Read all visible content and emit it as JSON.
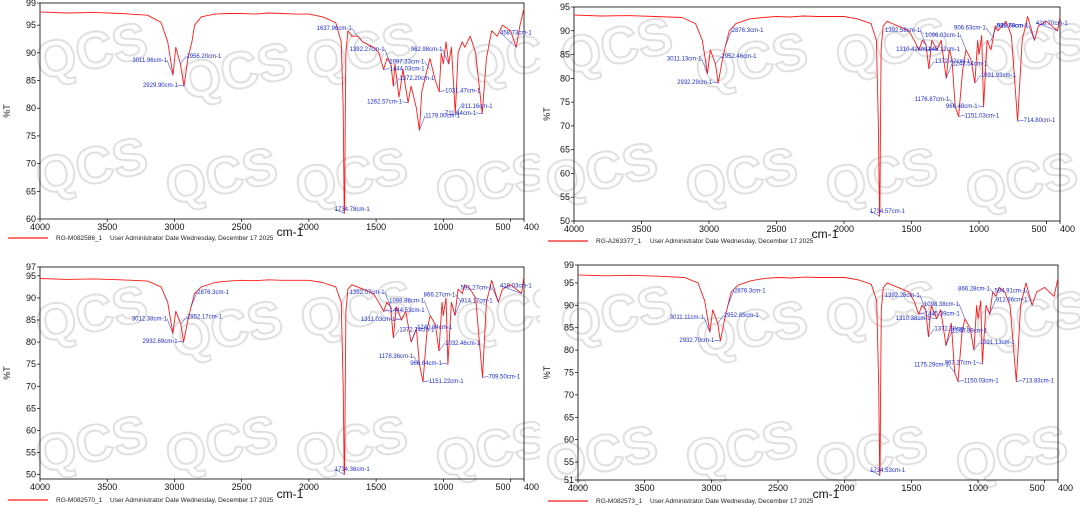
{
  "watermark": "QCS",
  "line_color": "#ff1a1a",
  "annotation_color": "#1a2bd6",
  "chart_data": [
    {
      "type": "line",
      "xlabel": "cm-1",
      "ylabel": "%T",
      "xlim": [
        4000,
        400
      ],
      "ylim": [
        60,
        99
      ],
      "xticks": [
        "4000",
        "3500",
        "3000",
        "2500",
        "2000",
        "1500",
        "1000",
        "500",
        "400"
      ],
      "yticks": [
        "60",
        "65",
        "70",
        "75",
        "80",
        "85",
        "90",
        "95",
        "99"
      ],
      "legend_label": "RG-M082586_1",
      "footer_text": "User Administrator Date Wednesday, December 17 2025",
      "series": [
        {
          "x": [
            4000,
            3800,
            3600,
            3400,
            3200,
            3100,
            3050,
            3011,
            2990,
            2956,
            2929,
            2900,
            2870,
            2850,
            2800,
            2700,
            2600,
            2500,
            2400,
            2300,
            2200,
            2100,
            2000,
            1900,
            1850,
            1800,
            1760,
            1745,
            1737,
            1734,
            1731,
            1725,
            1710,
            1680,
            1637,
            1600,
            1520,
            1480,
            1444,
            1420,
            1390,
            1372,
            1360,
            1330,
            1300,
            1282,
            1262,
            1240,
            1200,
            1178,
            1160,
            1100,
            1060,
            1031,
            1015,
            1000,
            980,
            960,
            940,
            911,
            890,
            860,
            840,
            800,
            760,
            711,
            680,
            640,
            600,
            560,
            500,
            458,
            430,
            400
          ],
          "y": [
            97.4,
            97.2,
            97.3,
            97.1,
            96.8,
            95.5,
            92,
            86,
            91,
            88,
            84,
            89,
            92,
            95,
            96.5,
            97,
            97.1,
            97.1,
            97,
            97.2,
            97.1,
            97,
            97,
            96.5,
            96,
            95.4,
            92,
            80,
            61,
            62,
            75,
            90,
            94,
            93,
            93,
            92,
            91,
            90,
            87,
            89,
            88,
            84,
            88,
            82,
            87,
            84,
            81,
            84,
            80,
            76,
            83,
            89,
            85,
            83,
            90,
            88,
            92,
            88,
            91,
            79,
            90,
            92,
            91,
            93,
            90,
            79,
            89,
            94,
            93,
            95,
            94,
            91,
            95,
            98
          ]
        }
      ],
      "annotations": [
        {
          "label": "3011.96cm-1",
          "x": 3011,
          "y": 86
        },
        {
          "label": "2956.20cm-1",
          "x": 2956,
          "y": 88
        },
        {
          "label": "2929.90cm-1",
          "x": 2929,
          "y": 84
        },
        {
          "label": "1637.96cm-1",
          "x": 1637,
          "y": 93
        },
        {
          "label": "1392.27cm-1",
          "x": 1392,
          "y": 88
        },
        {
          "label": "1444.03cm-1",
          "x": 1444,
          "y": 87
        },
        {
          "label": "1372.20cm-1",
          "x": 1372,
          "y": 84
        },
        {
          "label": "1262.57cm-1",
          "x": 1262,
          "y": 81
        },
        {
          "label": "1179.00cm-1",
          "x": 1179,
          "y": 76
        },
        {
          "label": "1097.33cm-1",
          "x": 1097,
          "y": 87
        },
        {
          "label": "1031.47cm-1",
          "x": 1031,
          "y": 83
        },
        {
          "label": "962.98cm-1",
          "x": 962,
          "y": 88
        },
        {
          "label": "911.16cm-1",
          "x": 911,
          "y": 79
        },
        {
          "label": "711.84cm-1",
          "x": 711,
          "y": 79
        },
        {
          "label": "458.73cm-1",
          "x": 458,
          "y": 91
        },
        {
          "label": "1734.78cm-1",
          "x": 1734,
          "y": 61
        }
      ]
    },
    {
      "type": "line",
      "xlabel": "cm-1",
      "ylabel": "%T",
      "xlim": [
        4000,
        400
      ],
      "ylim": [
        50,
        95
      ],
      "xticks": [
        "4000",
        "3500",
        "3000",
        "2500",
        "2000",
        "1500",
        "1000",
        "500",
        "400"
      ],
      "yticks": [
        "50",
        "55",
        "60",
        "65",
        "70",
        "75",
        "80",
        "85",
        "90",
        "95"
      ],
      "legend_label": "RG-A263377_1",
      "footer_text": "User Administrator Date Wednesday, December 17 2025",
      "series": [
        {
          "x": [
            4000,
            3800,
            3600,
            3400,
            3200,
            3100,
            3050,
            3011,
            2990,
            2952,
            2932,
            2900,
            2876,
            2850,
            2800,
            2700,
            2600,
            2500,
            2400,
            2300,
            2200,
            2100,
            2000,
            1900,
            1850,
            1800,
            1760,
            1745,
            1737,
            1734,
            1731,
            1725,
            1710,
            1680,
            1600,
            1520,
            1480,
            1445,
            1420,
            1392,
            1372,
            1350,
            1310,
            1280,
            1243,
            1220,
            1200,
            1176,
            1151,
            1120,
            1096,
            1060,
            1031,
            1010,
            1000,
            980,
            966,
            940,
            911,
            880,
            860,
            800,
            760,
            714,
            680,
            640,
            589,
            560,
            500,
            418,
            400
          ],
          "y": [
            93.3,
            93.1,
            93.2,
            93,
            92.8,
            91.5,
            88,
            81,
            86,
            83,
            79,
            84,
            87,
            90,
            91.5,
            92.5,
            92.8,
            93,
            92.9,
            93.1,
            93,
            93,
            93,
            92.5,
            92,
            91.5,
            88,
            70,
            51,
            52,
            65,
            86,
            91,
            92,
            91,
            90,
            88,
            86,
            88,
            87,
            82,
            88,
            86,
            88,
            80,
            86,
            84,
            74,
            72,
            82,
            86,
            84,
            79,
            88,
            85,
            89,
            74,
            88,
            86,
            91,
            90,
            92,
            89,
            71,
            88,
            93,
            88,
            91,
            92,
            90,
            93
          ]
        }
      ],
      "annotations": [
        {
          "label": "3011.13cm-1",
          "x": 3011,
          "y": 81
        },
        {
          "label": "2952.46cm-1",
          "x": 2952,
          "y": 83
        },
        {
          "label": "2932.29cm-1",
          "x": 2932,
          "y": 79
        },
        {
          "label": "2876.3cm-1",
          "x": 2876,
          "y": 87
        },
        {
          "label": "1392.58cm-1",
          "x": 1392,
          "y": 87
        },
        {
          "label": "1445.12cm-1",
          "x": 1445,
          "y": 86
        },
        {
          "label": "1310.42cm-1",
          "x": 1310,
          "y": 86
        },
        {
          "label": "1372.42cm-1",
          "x": 1372,
          "y": 82
        },
        {
          "label": "1243.54cm-1",
          "x": 1243,
          "y": 80
        },
        {
          "label": "1096.03cm-1",
          "x": 1096,
          "y": 86
        },
        {
          "label": "1031.93cm-1",
          "x": 1031,
          "y": 79
        },
        {
          "label": "1176.87cm-1",
          "x": 1176,
          "y": 74
        },
        {
          "label": "966.48cm-1",
          "x": 966,
          "y": 74
        },
        {
          "label": "1151.03cm-1",
          "x": 1151,
          "y": 72
        },
        {
          "label": "906.63cm-1",
          "x": 906,
          "y": 89
        },
        {
          "label": "911.79cm-1",
          "x": 911,
          "y": 88
        },
        {
          "label": "714.80cm-1",
          "x": 714,
          "y": 71
        },
        {
          "label": "418.70cm-1",
          "x": 418,
          "y": 90
        },
        {
          "label": "589.68cm-1",
          "x": 589,
          "y": 88
        },
        {
          "label": "1734.57cm-1",
          "x": 1734,
          "y": 51
        }
      ]
    },
    {
      "type": "line",
      "xlabel": "cm-1",
      "ylabel": "%T",
      "xlim": [
        4000,
        400
      ],
      "ylim": [
        49,
        97
      ],
      "xticks": [
        "4000",
        "3500",
        "3000",
        "2500",
        "2000",
        "1500",
        "1000",
        "500",
        "400"
      ],
      "yticks": [
        "50",
        "55",
        "60",
        "65",
        "70",
        "75",
        "80",
        "85",
        "90",
        "95",
        "97"
      ],
      "legend_label": "RG-M082570_1",
      "footer_text": "User Administrator Date Wednesday, December 17 2025",
      "series": [
        {
          "x": [
            4000,
            3800,
            3600,
            3400,
            3200,
            3100,
            3050,
            3012,
            2990,
            2952,
            2932,
            2900,
            2876,
            2850,
            2800,
            2700,
            2600,
            2500,
            2400,
            2300,
            2200,
            2100,
            2000,
            1900,
            1850,
            1800,
            1760,
            1745,
            1737,
            1734,
            1731,
            1725,
            1710,
            1680,
            1600,
            1520,
            1480,
            1444,
            1420,
            1392,
            1372,
            1350,
            1311,
            1280,
            1240,
            1200,
            1178,
            1151,
            1120,
            1098,
            1060,
            1032,
            1010,
            1000,
            980,
            966,
            940,
            914,
            890,
            860,
            840,
            800,
            760,
            709,
            680,
            640,
            591,
            560,
            500,
            418,
            400
          ],
          "y": [
            94.4,
            94.2,
            94.3,
            94.1,
            93.8,
            92.5,
            89,
            82,
            87,
            84,
            80,
            85,
            88,
            91,
            92.5,
            93.5,
            93.8,
            94,
            93.9,
            94.1,
            94,
            94,
            94,
            93.5,
            93,
            92.5,
            89,
            70,
            50,
            51,
            66,
            87,
            92,
            93,
            92,
            91,
            89,
            87,
            89,
            88,
            81,
            88,
            85,
            87,
            80,
            83,
            75,
            71,
            83,
            86,
            84,
            78,
            89,
            86,
            90,
            75,
            89,
            86,
            92,
            91,
            93,
            92,
            90,
            72,
            89,
            94,
            89,
            92,
            93,
            91,
            95
          ]
        }
      ],
      "annotations": [
        {
          "label": "3012.38cm-1",
          "x": 3012,
          "y": 82
        },
        {
          "label": "2952.17cm-1",
          "x": 2952,
          "y": 84
        },
        {
          "label": "2932.69cm-1",
          "x": 2932,
          "y": 80
        },
        {
          "label": "2876.3cm-1",
          "x": 2876,
          "y": 88
        },
        {
          "label": "1392.07cm-1",
          "x": 1392,
          "y": 88
        },
        {
          "label": "1444.53cm-1",
          "x": 1444,
          "y": 87
        },
        {
          "label": "1311.03cm-1",
          "x": 1311,
          "y": 85
        },
        {
          "label": "1372.74cm-1",
          "x": 1372,
          "y": 81
        },
        {
          "label": "1240.84cm-1",
          "x": 1240,
          "y": 80
        },
        {
          "label": "1098.88cm-1",
          "x": 1098,
          "y": 86
        },
        {
          "label": "1032.46cm-1",
          "x": 1032,
          "y": 78
        },
        {
          "label": "1178.36cm-1",
          "x": 1178,
          "y": 75
        },
        {
          "label": "966.64cm-1",
          "x": 966,
          "y": 75
        },
        {
          "label": "1151.22cm-1",
          "x": 1151,
          "y": 71
        },
        {
          "label": "914.17cm-1",
          "x": 914,
          "y": 86
        },
        {
          "label": "866.27cm-1",
          "x": 866,
          "y": 89
        },
        {
          "label": "709.50cm-1",
          "x": 709,
          "y": 72
        },
        {
          "label": "418.03cm-1",
          "x": 418,
          "y": 91
        },
        {
          "label": "591.27cm-1",
          "x": 591,
          "y": 89
        },
        {
          "label": "1734.36cm-1",
          "x": 1734,
          "y": 50
        }
      ]
    },
    {
      "type": "line",
      "xlabel": "cm-1",
      "ylabel": "%T",
      "xlim": [
        4000,
        400
      ],
      "ylim": [
        51,
        99
      ],
      "xticks": [
        "4000",
        "3500",
        "3000",
        "2500",
        "2000",
        "1500",
        "1000",
        "500",
        "400"
      ],
      "yticks": [
        "51",
        "55",
        "60",
        "65",
        "70",
        "75",
        "80",
        "85",
        "90",
        "95",
        "99"
      ],
      "legend_label": "RG-M082573_1",
      "footer_text": "User Administrator Date Wednesday, December 17 2025",
      "series": [
        {
          "x": [
            4000,
            3800,
            3600,
            3400,
            3200,
            3100,
            3050,
            3011,
            2990,
            2952,
            2932,
            2900,
            2876,
            2850,
            2800,
            2700,
            2600,
            2500,
            2400,
            2300,
            2200,
            2100,
            2000,
            1900,
            1850,
            1800,
            1760,
            1745,
            1737,
            1734,
            1731,
            1725,
            1710,
            1680,
            1600,
            1520,
            1480,
            1445,
            1420,
            1392,
            1372,
            1350,
            1310,
            1280,
            1240,
            1200,
            1175,
            1150,
            1120,
            1098,
            1060,
            1031,
            1010,
            1000,
            980,
            967,
            940,
            912,
            890,
            866,
            840,
            800,
            760,
            713,
            680,
            640,
            594,
            560,
            500,
            430,
            400
          ],
          "y": [
            96.8,
            96.6,
            96.7,
            96.5,
            96.2,
            95,
            91,
            84,
            89,
            86,
            82,
            87,
            90,
            93,
            94.5,
            95.5,
            96,
            96.2,
            96.1,
            96.3,
            96.2,
            96.2,
            96.2,
            95.7,
            95.2,
            94.7,
            91,
            72,
            52,
            53,
            68,
            89,
            94,
            95,
            94,
            93,
            91,
            88,
            90,
            89,
            83,
            90,
            87,
            89,
            81,
            86,
            75,
            73,
            84,
            87,
            85,
            80,
            90,
            87,
            91,
            77,
            90,
            88,
            93,
            92,
            94,
            93,
            90,
            73,
            90,
            95,
            90,
            93,
            94,
            92,
            96
          ]
        }
      ],
      "annotations": [
        {
          "label": "3011.11cm-1",
          "x": 3011,
          "y": 84
        },
        {
          "label": "2932.70cm-1",
          "x": 2932,
          "y": 82
        },
        {
          "label": "2952.85cm-1",
          "x": 2952,
          "y": 86
        },
        {
          "label": "2876.3cm-1",
          "x": 2876,
          "y": 90
        },
        {
          "label": "1392.28cm-1",
          "x": 1392,
          "y": 89
        },
        {
          "label": "1445.39cm-1",
          "x": 1445,
          "y": 88
        },
        {
          "label": "1310.38cm-1",
          "x": 1310,
          "y": 87
        },
        {
          "label": "1372.38cm-1",
          "x": 1372,
          "y": 83
        },
        {
          "label": "1240.39cm-1",
          "x": 1240,
          "y": 81
        },
        {
          "label": "1098.38cm-1",
          "x": 1098,
          "y": 87
        },
        {
          "label": "1031.13cm-1",
          "x": 1031,
          "y": 80
        },
        {
          "label": "1175.29cm-1",
          "x": 1175,
          "y": 75
        },
        {
          "label": "967.27cm-1",
          "x": 967,
          "y": 77
        },
        {
          "label": "1150.03cm-1",
          "x": 1150,
          "y": 73
        },
        {
          "label": "866.28cm-1",
          "x": 866,
          "y": 92
        },
        {
          "label": "912.86cm-1",
          "x": 912,
          "y": 88
        },
        {
          "label": "713.83cm-1",
          "x": 713,
          "y": 73
        },
        {
          "label": "594.91cm-1",
          "x": 594,
          "y": 90
        },
        {
          "label": "1734.53cm-1",
          "x": 1734,
          "y": 52
        }
      ]
    }
  ]
}
